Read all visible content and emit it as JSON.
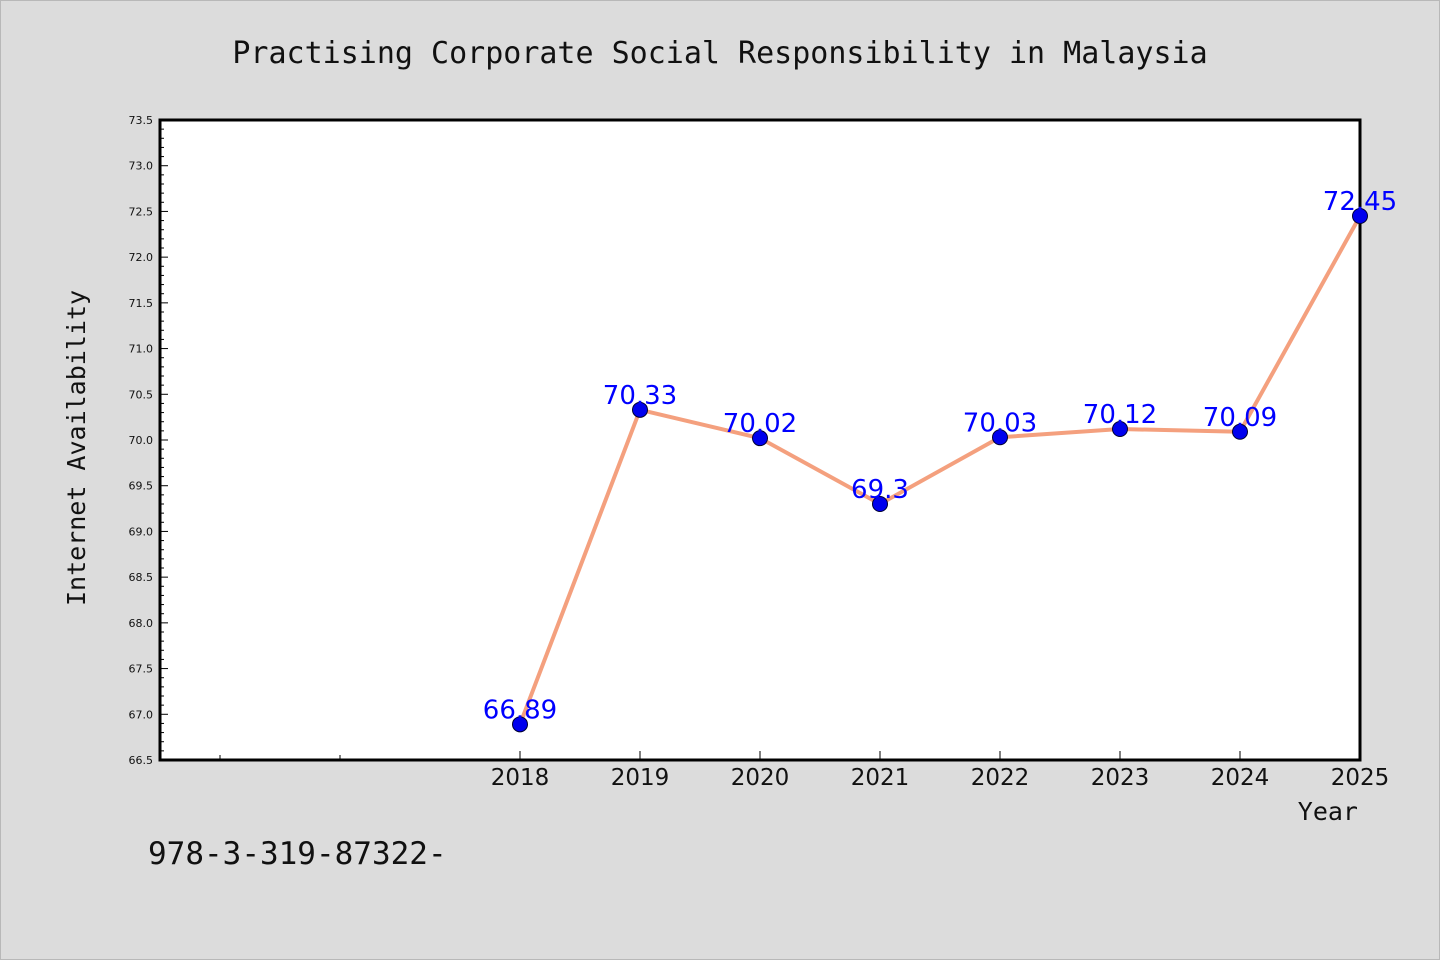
{
  "chart_data": {
    "type": "line",
    "title": "Practising Corporate Social Responsibility in Malaysia",
    "xlabel": "Year",
    "ylabel": "Internet Availability",
    "x": [
      "2018",
      "2019",
      "2020",
      "2021",
      "2022",
      "2023",
      "2024",
      "2025"
    ],
    "values": [
      66.89,
      70.33,
      70.02,
      69.3,
      70.03,
      70.12,
      70.09,
      72.45
    ],
    "data_labels": [
      "66.89",
      "70.33",
      "70.02",
      "69.3",
      "70.03",
      "70.12",
      "70.09",
      "72.45"
    ],
    "ylim": [
      66.5,
      73.5
    ],
    "yticks": [
      "66.5",
      "67.0",
      "67.5",
      "68.0",
      "68.5",
      "69.0",
      "69.5",
      "70.0",
      "70.5",
      "71.0",
      "71.5",
      "72.0",
      "72.5",
      "73.0",
      "73.5"
    ],
    "grid": false,
    "legend": "none",
    "colors": {
      "line": "#f4a07e",
      "marker": "#0000ee",
      "data_label": "#0000ff",
      "plot_background": "#ffffff",
      "figure_background": "#dcdcdc"
    }
  },
  "footer": {
    "code": "978-3-319-87322-"
  }
}
